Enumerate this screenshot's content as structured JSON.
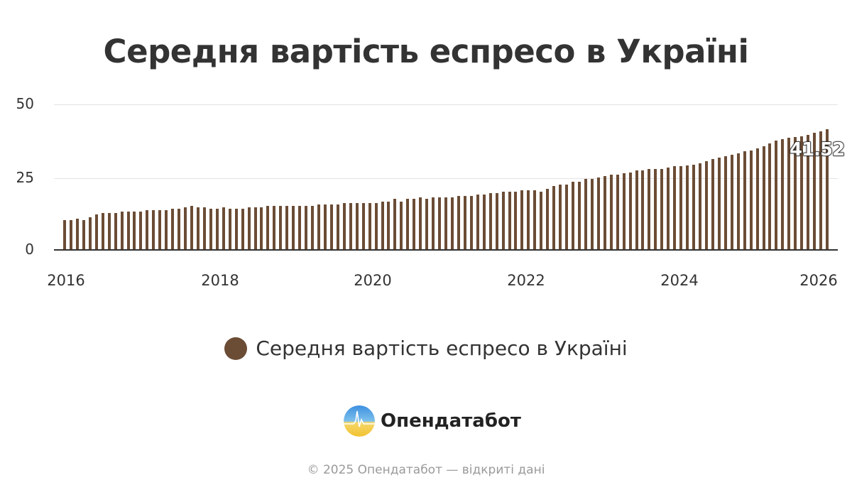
{
  "title": "Середня вартість еспресо в Україні",
  "chart_data": {
    "type": "bar",
    "title": "Середня вартість еспресо в Україні",
    "xlabel": "",
    "ylabel": "",
    "ylim": [
      0,
      50
    ],
    "yticks": [
      0,
      25,
      50
    ],
    "xticks": [
      "2016",
      "2018",
      "2020",
      "2022",
      "2024",
      "2026"
    ],
    "grid": true,
    "legend_position": "bottom",
    "color": "#6b4c35",
    "x_start": "2016-01",
    "frequency": "monthly",
    "series": [
      {
        "name": "Середня вартість еспресо в Україні",
        "values": [
          10.2,
          10.2,
          10.7,
          10.2,
          11.2,
          12.1,
          12.7,
          12.7,
          12.7,
          13.1,
          13.1,
          13.1,
          13.1,
          13.7,
          13.7,
          13.7,
          13.7,
          14.1,
          14.1,
          14.6,
          15.1,
          14.6,
          14.6,
          14.1,
          14.1,
          14.6,
          14.1,
          14.1,
          14.1,
          14.6,
          14.6,
          14.6,
          15.1,
          15.1,
          15.1,
          15.1,
          15.1,
          15.1,
          15.1,
          15.1,
          15.6,
          15.6,
          15.6,
          15.6,
          16.1,
          16.1,
          16.1,
          16.1,
          16.1,
          16.1,
          16.6,
          16.6,
          17.6,
          16.5,
          17.6,
          17.6,
          18.0,
          17.6,
          18.0,
          18.0,
          18.0,
          18.0,
          18.5,
          18.5,
          18.5,
          19.0,
          19.0,
          19.4,
          19.4,
          19.9,
          19.9,
          19.9,
          20.4,
          20.4,
          20.4,
          20.0,
          21.0,
          21.9,
          22.4,
          22.4,
          23.4,
          23.4,
          24.3,
          24.3,
          24.8,
          25.3,
          25.8,
          25.8,
          26.3,
          26.7,
          27.2,
          27.2,
          27.7,
          27.7,
          27.7,
          28.2,
          28.7,
          28.7,
          29.0,
          29.3,
          29.8,
          30.6,
          31.2,
          31.8,
          32.2,
          32.6,
          33.2,
          33.8,
          34.1,
          35.0,
          35.6,
          36.5,
          37.5,
          38.0,
          38.5,
          38.9,
          39.0,
          39.5,
          40.3,
          40.8,
          41.52
        ]
      }
    ],
    "annotations": [
      {
        "text": "41.52",
        "target": "last-bar"
      }
    ]
  },
  "axis": {
    "y_labels": [
      "50",
      "25",
      "0"
    ],
    "x_labels": [
      "2016",
      "2018",
      "2020",
      "2022",
      "2024",
      "2026"
    ]
  },
  "last_value_label": "41.52",
  "legend": {
    "label": "Середня вартість еспресо в Україні",
    "color": "#6b4c35"
  },
  "logo": {
    "text": "Опендатабот"
  },
  "footer": "© 2025 Опендатабот — відкриті дані"
}
